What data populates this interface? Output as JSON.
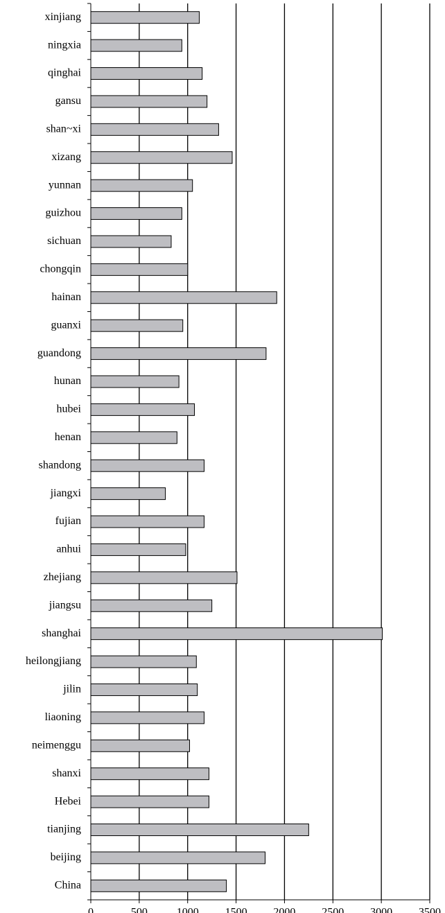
{
  "chart_data": {
    "type": "bar",
    "orientation": "horizontal",
    "categories": [
      "xinjiang",
      "ningxia",
      "qinghai",
      "gansu",
      "shan~xi",
      "xizang",
      "yunnan",
      "guizhou",
      "sichuan",
      "chongqin",
      "hainan",
      "guanxi",
      "guandong",
      "hunan",
      "hubei",
      "henan",
      "shandong",
      "jiangxi",
      "fujian",
      "anhui",
      "zhejiang",
      "jiangsu",
      "shanghai",
      "heilongjiang",
      "jilin",
      "liaoning",
      "neimenggu",
      "shanxi",
      "Hebei",
      "tianjing",
      "beijing",
      "China"
    ],
    "values": [
      1120,
      940,
      1150,
      1200,
      1320,
      1460,
      1050,
      940,
      830,
      1000,
      1920,
      950,
      1810,
      910,
      1070,
      890,
      1170,
      770,
      1170,
      980,
      1510,
      1250,
      3010,
      1090,
      1100,
      1170,
      1020,
      1220,
      1220,
      2250,
      1800,
      1400
    ],
    "color": "#bebec2",
    "xlim": [
      0,
      3500
    ],
    "xticks": [
      0,
      500,
      1000,
      1500,
      2000,
      2500,
      3000,
      3500
    ],
    "grid": true
  }
}
